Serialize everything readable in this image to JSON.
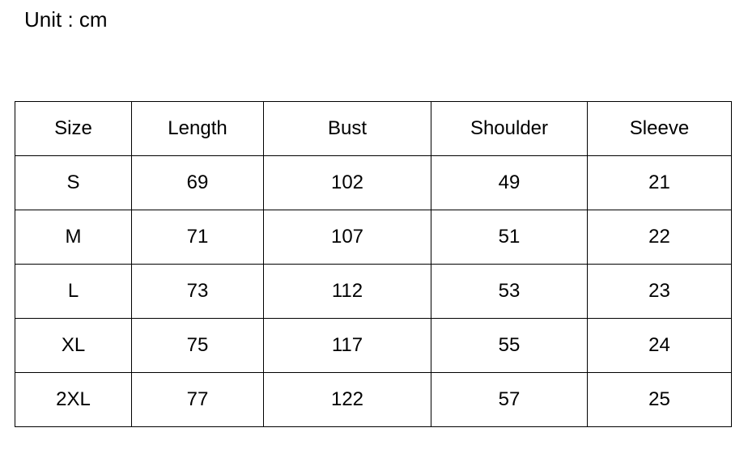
{
  "unit_label": "Unit : cm",
  "table": {
    "headers": [
      "Size",
      "Length",
      "Bust",
      "Shoulder",
      "Sleeve"
    ],
    "rows": [
      [
        "S",
        "69",
        "102",
        "49",
        "21"
      ],
      [
        "M",
        "71",
        "107",
        "51",
        "22"
      ],
      [
        "L",
        "73",
        "112",
        "53",
        "23"
      ],
      [
        "XL",
        "75",
        "117",
        "55",
        "24"
      ],
      [
        "2XL",
        "77",
        "122",
        "57",
        "25"
      ]
    ]
  }
}
